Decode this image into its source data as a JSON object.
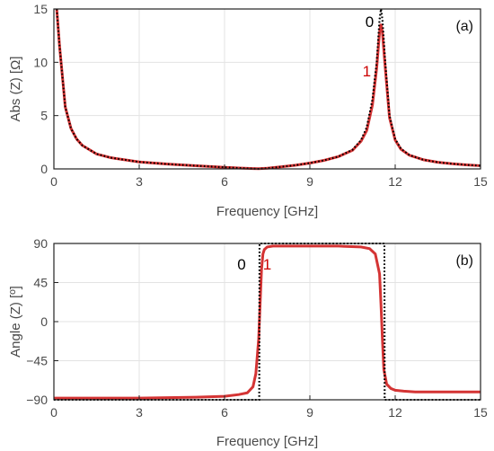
{
  "chart_data": [
    {
      "type": "line",
      "panel_label": "(a)",
      "xlabel": "Frequency [GHz]",
      "ylabel": "Abs (Z) [Ω]",
      "xlim": [
        0,
        15
      ],
      "ylim": [
        0,
        15
      ],
      "xticks": [
        0,
        3,
        6,
        9,
        12,
        15
      ],
      "yticks": [
        0,
        5,
        10,
        15
      ],
      "grid": true,
      "curve_labels": [
        {
          "text": "0",
          "color": "#000000",
          "x": 11.1,
          "y": 13.3
        },
        {
          "text": "1",
          "color": "#cc0000",
          "x": 11.0,
          "y": 8.7
        }
      ],
      "series": [
        {
          "name": "0",
          "style": "dotted",
          "color": "#000000",
          "x": [
            0.1,
            0.2,
            0.4,
            0.6,
            0.8,
            1.0,
            1.5,
            2.0,
            3.0,
            4.0,
            5.0,
            6.0,
            6.5,
            7.0,
            7.2,
            7.5,
            8.0,
            8.5,
            9.0,
            9.5,
            10.0,
            10.5,
            10.8,
            11.0,
            11.2,
            11.35,
            11.45,
            11.5,
            11.55,
            11.65,
            11.8,
            12.0,
            12.2,
            12.5,
            13.0,
            13.5,
            14.0,
            14.5,
            15.0
          ],
          "y": [
            15,
            11.5,
            5.8,
            3.8,
            2.8,
            2.2,
            1.4,
            1.05,
            0.65,
            0.45,
            0.3,
            0.15,
            0.08,
            0.02,
            0.0,
            0.06,
            0.2,
            0.35,
            0.55,
            0.8,
            1.15,
            1.8,
            2.7,
            3.9,
            6.5,
            10.0,
            14.0,
            15.0,
            14.0,
            10.0,
            5.0,
            2.8,
            1.9,
            1.3,
            0.85,
            0.62,
            0.48,
            0.38,
            0.3
          ]
        },
        {
          "name": "1",
          "style": "solid",
          "color": "#cc1111",
          "x": [
            0.1,
            0.2,
            0.4,
            0.6,
            0.8,
            1.0,
            1.5,
            2.0,
            3.0,
            4.0,
            5.0,
            6.0,
            6.5,
            7.0,
            7.2,
            7.5,
            8.0,
            8.5,
            9.0,
            9.5,
            10.0,
            10.5,
            10.8,
            11.0,
            11.2,
            11.35,
            11.45,
            11.5,
            11.55,
            11.65,
            11.8,
            12.0,
            12.2,
            12.5,
            13.0,
            13.5,
            14.0,
            14.5,
            15.0
          ],
          "y": [
            15,
            11.5,
            5.8,
            3.8,
            2.8,
            2.2,
            1.4,
            1.05,
            0.65,
            0.45,
            0.3,
            0.15,
            0.08,
            0.03,
            0.02,
            0.06,
            0.2,
            0.35,
            0.55,
            0.8,
            1.15,
            1.75,
            2.6,
            3.6,
            6.0,
            9.5,
            12.8,
            13.6,
            12.8,
            9.5,
            4.8,
            2.7,
            1.85,
            1.28,
            0.85,
            0.62,
            0.48,
            0.38,
            0.3
          ]
        }
      ]
    },
    {
      "type": "line",
      "panel_label": "(b)",
      "xlabel": "Frequency [GHz]",
      "ylabel": "Angle (Z) [º]",
      "xlim": [
        0,
        15
      ],
      "ylim": [
        -90,
        90
      ],
      "xticks": [
        0,
        3,
        6,
        9,
        12,
        15
      ],
      "yticks": [
        90,
        45,
        0,
        -45,
        -90
      ],
      "ytick_labels": [
        "90",
        "45",
        "0",
        "−45",
        "−90"
      ],
      "grid": true,
      "curve_labels": [
        {
          "text": "0",
          "color": "#000000",
          "x": 6.6,
          "y": 60
        },
        {
          "text": "1",
          "color": "#cc0000",
          "x": 7.5,
          "y": 60
        }
      ],
      "series": [
        {
          "name": "0",
          "style": "dotted",
          "color": "#000000",
          "x": [
            0,
            7.22,
            7.23,
            7.3,
            11.6,
            11.62,
            11.63,
            15
          ],
          "y": [
            -90,
            -90,
            90,
            90,
            90,
            90,
            -90,
            -90
          ]
        },
        {
          "name": "1",
          "style": "solid",
          "color": "#cc1111",
          "x": [
            0,
            3,
            5,
            6,
            6.5,
            6.8,
            7.0,
            7.1,
            7.2,
            7.25,
            7.3,
            7.35,
            7.4,
            7.5,
            7.7,
            8.0,
            9.0,
            10.0,
            10.8,
            11.1,
            11.3,
            11.45,
            11.5,
            11.55,
            11.6,
            11.7,
            11.85,
            12.0,
            12.3,
            12.7,
            13.5,
            14.5,
            15.0
          ],
          "y": [
            -88,
            -88,
            -87,
            -86,
            -84,
            -82,
            -75,
            -60,
            -20,
            20,
            60,
            78,
            83,
            86,
            87,
            87,
            87,
            87,
            86,
            84,
            78,
            55,
            20,
            -20,
            -55,
            -72,
            -77,
            -79,
            -80,
            -81,
            -81,
            -81,
            -81
          ]
        }
      ]
    }
  ]
}
